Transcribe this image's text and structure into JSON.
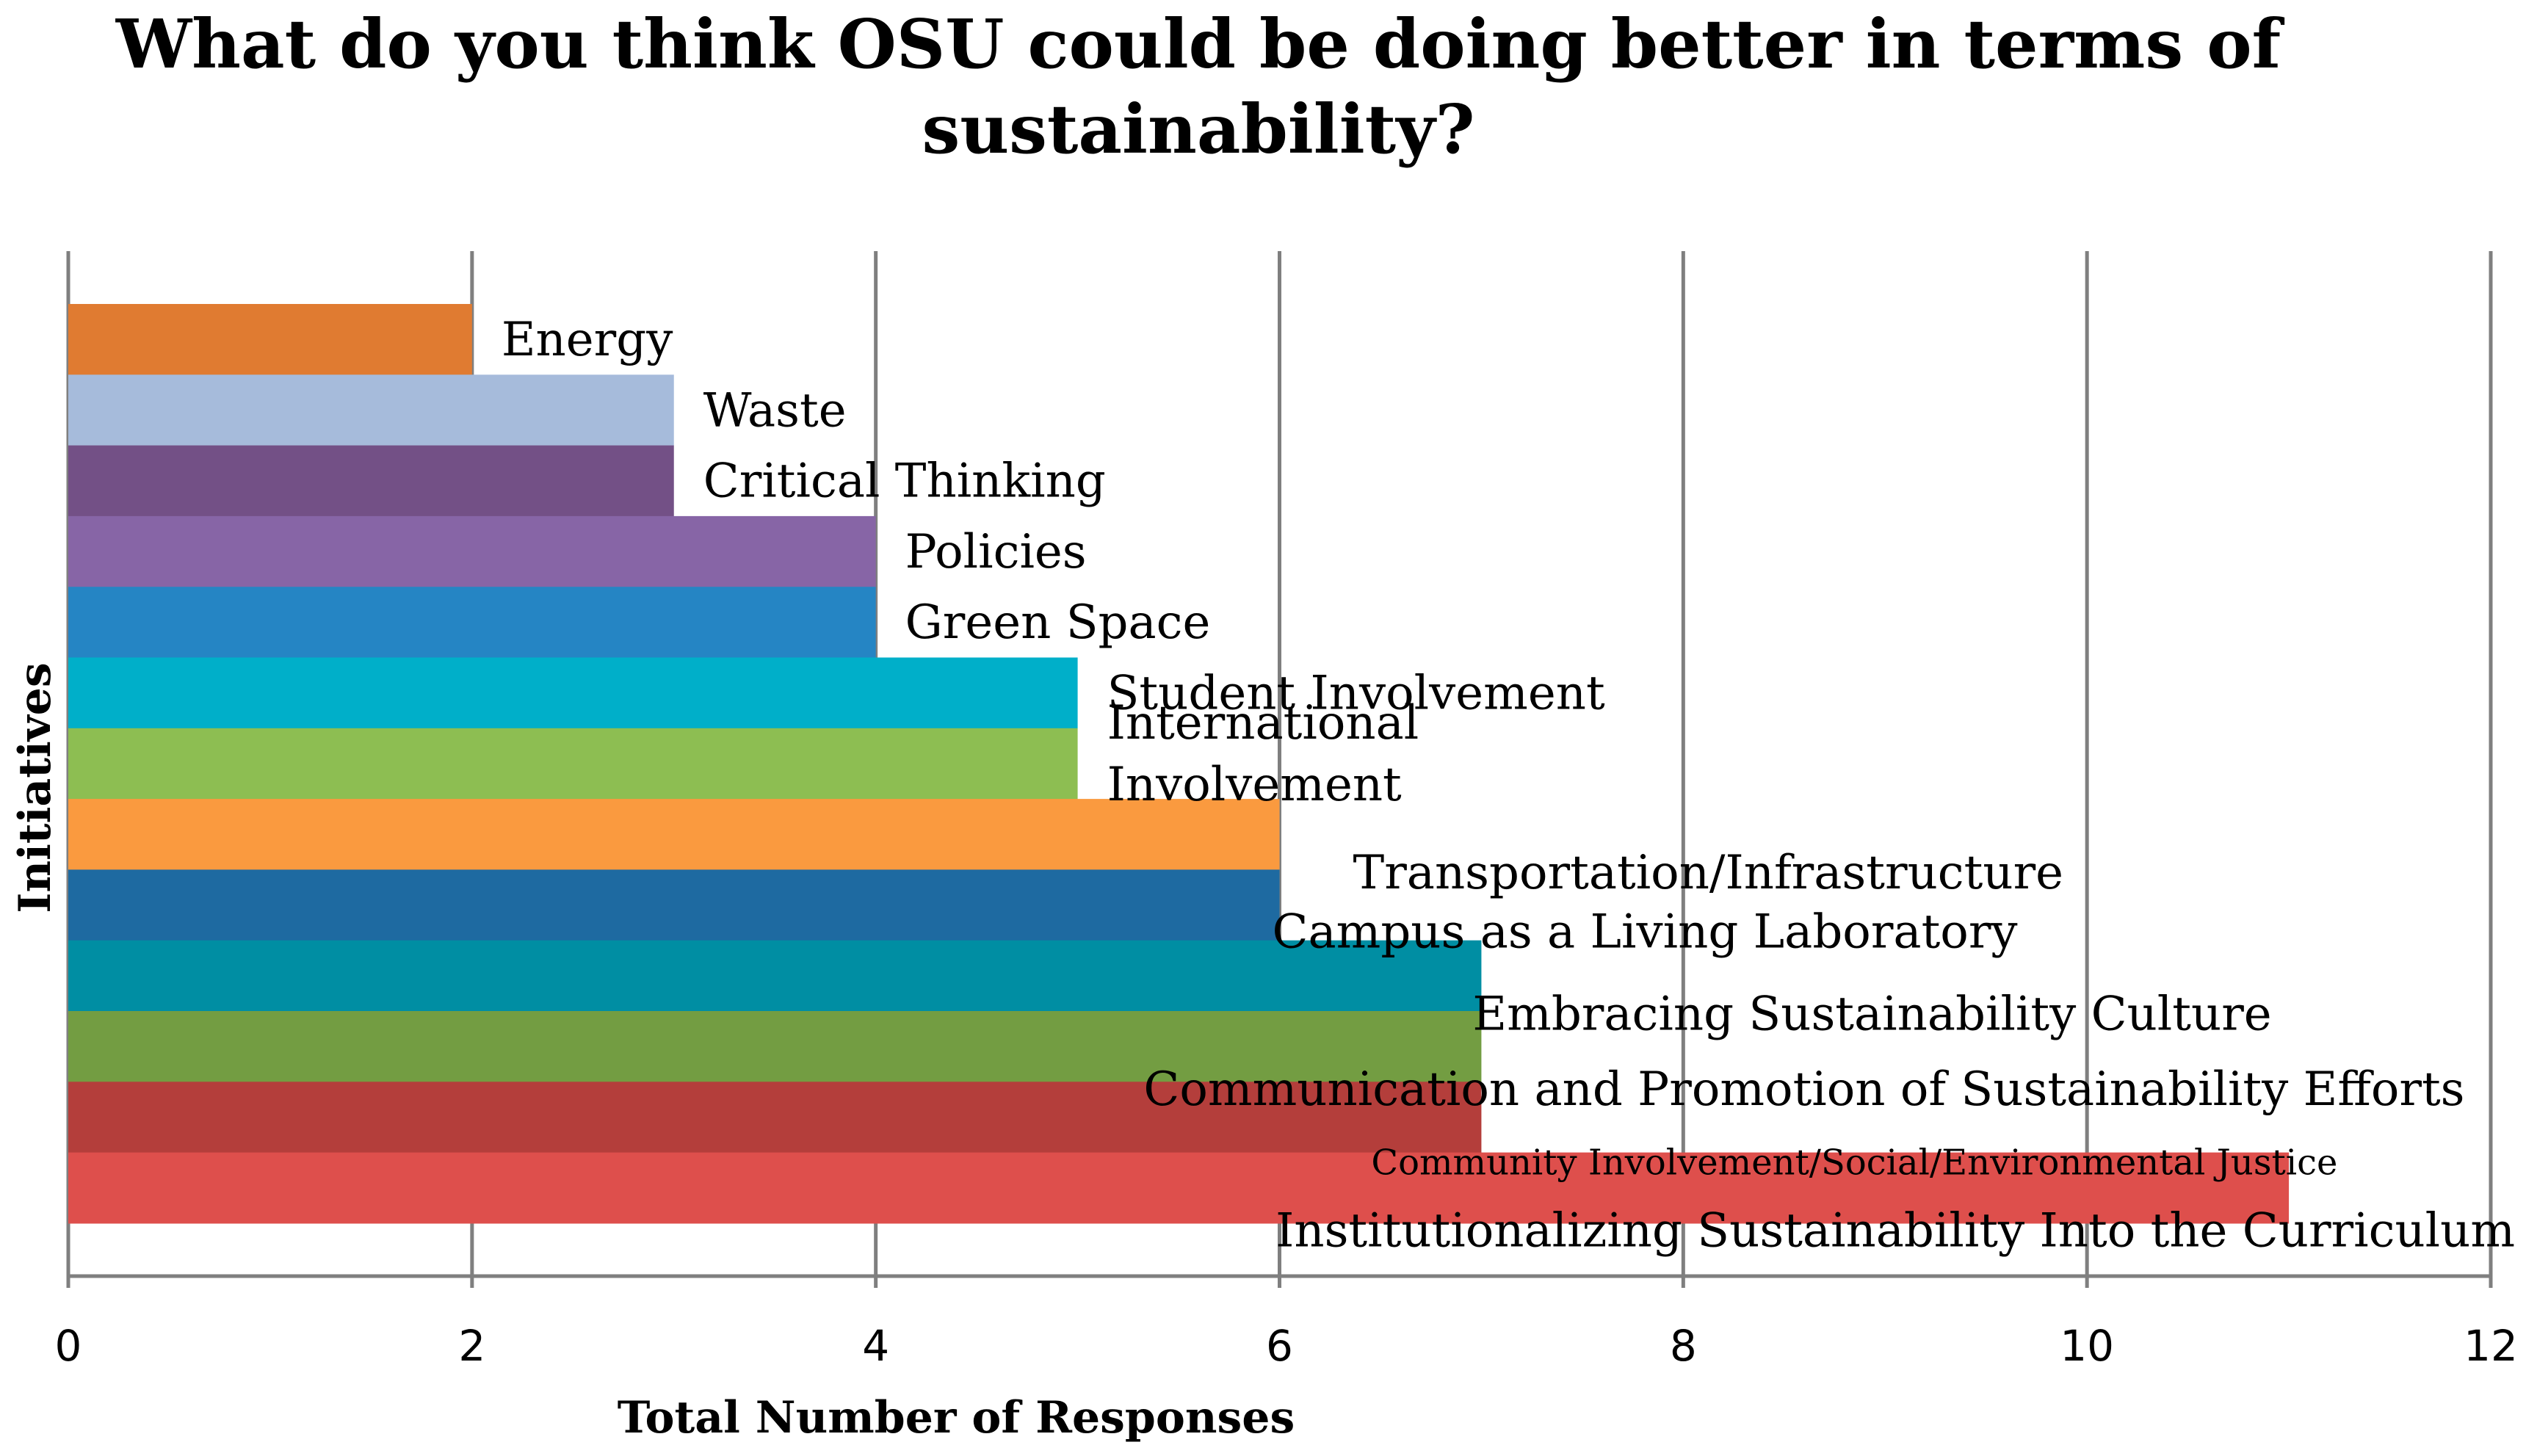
{
  "chart_data": {
    "type": "bar",
    "orientation": "horizontal",
    "title_lines": [
      "What do you think OSU could be doing better in terms of",
      "sustainability?"
    ],
    "xlabel": "Total Number of Responses",
    "ylabel": "Initiatives",
    "xlim": [
      0,
      12
    ],
    "x_ticks": [
      "0",
      "2",
      "4",
      "6",
      "8",
      "10",
      "12"
    ],
    "grid": true,
    "categories": [
      {
        "label_lines": [
          "Energy"
        ],
        "value": 2,
        "color": "#E07B31"
      },
      {
        "label_lines": [
          "Waste"
        ],
        "value": 3,
        "color": "#A6BBDB"
      },
      {
        "label_lines": [
          "Critical Thinking"
        ],
        "value": 3,
        "color": "#735086"
      },
      {
        "label_lines": [
          "Policies"
        ],
        "value": 4,
        "color": "#8765A6"
      },
      {
        "label_lines": [
          "Green Space"
        ],
        "value": 4,
        "color": "#2585C4"
      },
      {
        "label_lines": [
          "Student Involvement"
        ],
        "value": 5,
        "color": "#00AFC9"
      },
      {
        "label_lines": [
          "International",
          "Involvement"
        ],
        "value": 5,
        "color": "#8DBE52"
      },
      {
        "label_lines": [
          "Transportation/Infrastructure"
        ],
        "value": 6,
        "color": "#FA9A3F"
      },
      {
        "label_lines": [
          "Campus as a Living Laboratory"
        ],
        "value": 6,
        "color": "#1E6AA1"
      },
      {
        "label_lines": [
          "Embracing Sustainability Culture"
        ],
        "value": 7,
        "color": "#008EA3"
      },
      {
        "label_lines": [
          "Communication and Promotion of Sustainability Efforts"
        ],
        "value": 7,
        "color": "#739D42"
      },
      {
        "label_lines": [
          "Community Involvement/Social/Environmental Justice"
        ],
        "value": 7,
        "color": "#B43E3B",
        "small": true
      },
      {
        "label_lines": [
          "Institutionalizing Sustainability Into the Curriculum"
        ],
        "value": 11,
        "color": "#DE4F4C"
      }
    ]
  }
}
